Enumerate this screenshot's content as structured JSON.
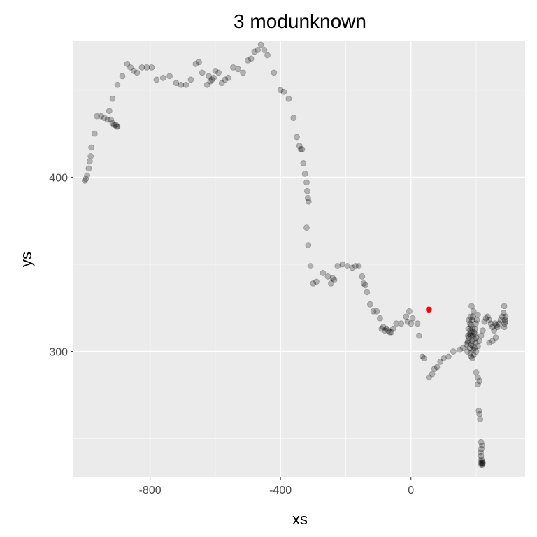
{
  "chart_data": {
    "type": "scatter",
    "title": "3 modunknown",
    "xlabel": "xs",
    "ylabel": "ys",
    "xlim": [
      -1035,
      350
    ],
    "ylim": [
      228,
      478
    ],
    "x_ticks": [
      -800,
      -400,
      0
    ],
    "x_tick_labels": [
      "-800",
      "-400",
      "0"
    ],
    "y_ticks": [
      300,
      400
    ],
    "y_tick_labels": [
      "300",
      "400"
    ],
    "grid": true,
    "colors": {
      "panel_background": "#ebebeb",
      "grid": "#ffffff",
      "point": "#000000",
      "highlight": "#ff0000"
    },
    "point_alpha": 0.25,
    "series": [
      {
        "values": [
          [
            -1000,
            398
          ],
          [
            -997,
            399
          ],
          [
            -993,
            401
          ],
          [
            -988,
            405
          ],
          [
            -985,
            409
          ],
          [
            -982,
            412
          ],
          [
            -980,
            417
          ],
          [
            -970,
            425
          ],
          [
            -963,
            435
          ],
          [
            -950,
            435
          ],
          [
            -940,
            434
          ],
          [
            -930,
            433
          ],
          [
            -925,
            438
          ],
          [
            -920,
            433
          ],
          [
            -915,
            431
          ],
          [
            -910,
            430
          ],
          [
            -905,
            430
          ],
          [
            -902,
            429
          ],
          [
            -900,
            429
          ],
          [
            -915,
            445
          ],
          [
            -900,
            453
          ],
          [
            -885,
            458
          ],
          [
            -870,
            465
          ],
          [
            -860,
            463
          ],
          [
            -850,
            461
          ],
          [
            -840,
            460
          ],
          [
            -825,
            463
          ],
          [
            -810,
            463
          ],
          [
            -795,
            463
          ],
          [
            -780,
            456
          ],
          [
            -760,
            457
          ],
          [
            -740,
            458
          ],
          [
            -720,
            454
          ],
          [
            -705,
            453
          ],
          [
            -690,
            453
          ],
          [
            -675,
            456
          ],
          [
            -660,
            465
          ],
          [
            -650,
            466
          ],
          [
            -640,
            460
          ],
          [
            -625,
            453
          ],
          [
            -620,
            458
          ],
          [
            -615,
            455
          ],
          [
            -610,
            456
          ],
          [
            -605,
            457
          ],
          [
            -600,
            461
          ],
          [
            -590,
            460
          ],
          [
            -580,
            454
          ],
          [
            -570,
            456
          ],
          [
            -560,
            457
          ],
          [
            -545,
            463
          ],
          [
            -530,
            462
          ],
          [
            -515,
            460
          ],
          [
            -500,
            467
          ],
          [
            -490,
            468
          ],
          [
            -480,
            472
          ],
          [
            -470,
            473
          ],
          [
            -460,
            476
          ],
          [
            -450,
            473
          ],
          [
            -440,
            470
          ],
          [
            -420,
            460
          ],
          [
            -400,
            450
          ],
          [
            -390,
            449
          ],
          [
            -375,
            445
          ],
          [
            -360,
            434
          ],
          [
            -350,
            423
          ],
          [
            -342,
            418
          ],
          [
            -338,
            416
          ],
          [
            -334,
            416
          ],
          [
            -330,
            408
          ],
          [
            -325,
            402
          ],
          [
            -320,
            397
          ],
          [
            -318,
            392
          ],
          [
            -316,
            388
          ],
          [
            -314,
            386
          ],
          [
            -320,
            371
          ],
          [
            -315,
            361
          ],
          [
            -308,
            349
          ],
          [
            -300,
            339
          ],
          [
            -290,
            340
          ],
          [
            -270,
            345
          ],
          [
            -255,
            343
          ],
          [
            -245,
            339
          ],
          [
            -240,
            342
          ],
          [
            -235,
            341
          ],
          [
            -225,
            349
          ],
          [
            -210,
            350
          ],
          [
            -195,
            349
          ],
          [
            -180,
            348
          ],
          [
            -170,
            349
          ],
          [
            -160,
            349
          ],
          [
            -150,
            343
          ],
          [
            -145,
            339
          ],
          [
            -140,
            338
          ],
          [
            -135,
            334
          ],
          [
            -125,
            327
          ],
          [
            -115,
            323
          ],
          [
            -105,
            323
          ],
          [
            -95,
            319
          ],
          [
            -90,
            313
          ],
          [
            -85,
            314
          ],
          [
            -80,
            312
          ],
          [
            -75,
            313
          ],
          [
            -70,
            312
          ],
          [
            -65,
            311
          ],
          [
            -60,
            311
          ],
          [
            -55,
            313
          ],
          [
            -45,
            316
          ],
          [
            -30,
            316
          ],
          [
            -15,
            320
          ],
          [
            -5,
            323
          ],
          [
            -10,
            317
          ],
          [
            0,
            316
          ],
          [
            5,
            319
          ],
          [
            20,
            316
          ],
          [
            25,
            309
          ],
          [
            35,
            297
          ],
          [
            40,
            296
          ],
          [
            55,
            285
          ],
          [
            65,
            287
          ],
          [
            72,
            290
          ],
          [
            80,
            291
          ],
          [
            90,
            294
          ],
          [
            100,
            296
          ],
          [
            115,
            297
          ],
          [
            130,
            300
          ],
          [
            150,
            301
          ],
          [
            160,
            302
          ],
          [
            170,
            304
          ],
          [
            175,
            306
          ],
          [
            178,
            308
          ],
          [
            180,
            310
          ],
          [
            182,
            312
          ],
          [
            185,
            315
          ],
          [
            188,
            318
          ],
          [
            190,
            320
          ],
          [
            192,
            323
          ],
          [
            186,
            326
          ],
          [
            180,
            302
          ],
          [
            183,
            299
          ],
          [
            185,
            297
          ],
          [
            188,
            296
          ],
          [
            192,
            298
          ],
          [
            195,
            302
          ],
          [
            198,
            305
          ],
          [
            200,
            308
          ],
          [
            185,
            304
          ],
          [
            187,
            306
          ],
          [
            190,
            309
          ],
          [
            193,
            311
          ],
          [
            196,
            313
          ],
          [
            199,
            316
          ],
          [
            202,
            318
          ],
          [
            205,
            321
          ],
          [
            178,
            318
          ],
          [
            176,
            313
          ],
          [
            175,
            309
          ],
          [
            174,
            305
          ],
          [
            173,
            300
          ],
          [
            191,
            301
          ],
          [
            189,
            303
          ],
          [
            194,
            307
          ],
          [
            197,
            310
          ],
          [
            184,
            309
          ],
          [
            186,
            311
          ],
          [
            188,
            313
          ],
          [
            181,
            316
          ],
          [
            183,
            320
          ],
          [
            200,
            300
          ],
          [
            205,
            303
          ],
          [
            210,
            306
          ],
          [
            215,
            309
          ],
          [
            220,
            312
          ],
          [
            225,
            317
          ],
          [
            230,
            319
          ],
          [
            235,
            320
          ],
          [
            240,
            318
          ],
          [
            245,
            316
          ],
          [
            250,
            314
          ],
          [
            255,
            312
          ],
          [
            258,
            316
          ],
          [
            262,
            315
          ],
          [
            265,
            314
          ],
          [
            270,
            316
          ],
          [
            275,
            318
          ],
          [
            280,
            320
          ],
          [
            284,
            322
          ],
          [
            286,
            326
          ],
          [
            288,
            318
          ],
          [
            287,
            316
          ],
          [
            286,
            314
          ],
          [
            289,
            317
          ],
          [
            290,
            320
          ],
          [
            260,
            308
          ],
          [
            250,
            306
          ],
          [
            240,
            305
          ],
          [
            200,
            288
          ],
          [
            205,
            285
          ],
          [
            210,
            283
          ],
          [
            205,
            281
          ],
          [
            208,
            266
          ],
          [
            210,
            264
          ],
          [
            212,
            261
          ],
          [
            215,
            248
          ],
          [
            218,
            246
          ],
          [
            216,
            244
          ],
          [
            214,
            242
          ],
          [
            215,
            240
          ],
          [
            216,
            238
          ],
          [
            217,
            237
          ],
          [
            218,
            236
          ],
          [
            219,
            235
          ],
          [
            220,
            236
          ],
          [
            215,
            236
          ],
          [
            216,
            235
          ]
        ]
      },
      {
        "values": [
          [
            55,
            324
          ]
        ]
      }
    ]
  }
}
